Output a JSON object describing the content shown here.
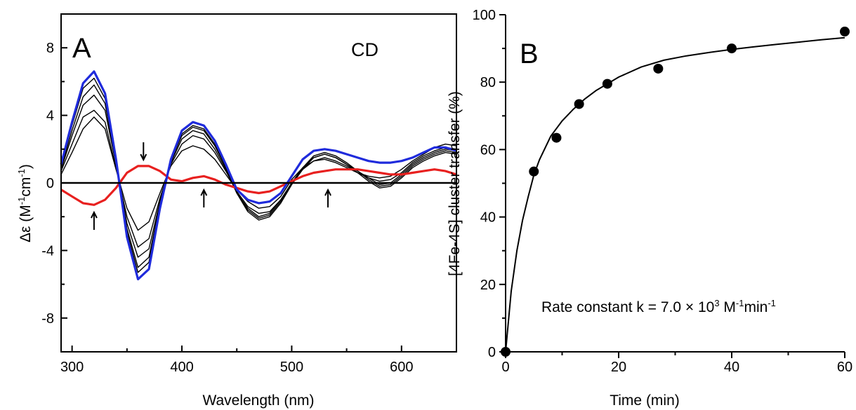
{
  "chart_data": [
    {
      "type": "line",
      "panel_label": "A",
      "annotation": "CD",
      "xlabel": "Wavelength (nm)",
      "ylabel_text": "Δε (M",
      "ylabel_sup1": "-1",
      "ylabel_mid": "cm",
      "ylabel_sup2": "-1",
      "ylabel_end": ")",
      "xlim": [
        290,
        650
      ],
      "ylim": [
        -10,
        10
      ],
      "xticks": [
        300,
        400,
        500,
        600
      ],
      "yticks": [
        -8,
        -4,
        0,
        4,
        8
      ],
      "grid": false,
      "colors": {
        "initial": "#e8201f",
        "intermediate": "#000000",
        "final": "#1f2bdc",
        "zero_line": "#000000"
      },
      "arrows": [
        {
          "x": 365,
          "direction": "down"
        },
        {
          "x": 320,
          "direction": "up"
        },
        {
          "x": 420,
          "direction": "up"
        },
        {
          "x": 533,
          "direction": "up"
        }
      ],
      "series": [
        {
          "role": "initial",
          "x": [
            290,
            300,
            310,
            320,
            330,
            340,
            350,
            360,
            370,
            380,
            390,
            400,
            410,
            420,
            430,
            440,
            450,
            460,
            470,
            480,
            490,
            500,
            510,
            520,
            530,
            540,
            550,
            560,
            570,
            580,
            590,
            600,
            610,
            620,
            630,
            640,
            650
          ],
          "y": [
            -0.4,
            -0.8,
            -1.2,
            -1.3,
            -1.0,
            -0.3,
            0.6,
            1.0,
            1.0,
            0.7,
            0.2,
            0.1,
            0.3,
            0.4,
            0.2,
            -0.1,
            -0.3,
            -0.5,
            -0.6,
            -0.5,
            -0.2,
            0.1,
            0.4,
            0.6,
            0.7,
            0.8,
            0.8,
            0.8,
            0.7,
            0.6,
            0.5,
            0.5,
            0.6,
            0.7,
            0.8,
            0.7,
            0.5
          ]
        },
        {
          "role": "intermediate",
          "x": [
            290,
            300,
            310,
            320,
            330,
            340,
            350,
            360,
            370,
            380,
            390,
            400,
            410,
            420,
            430,
            440,
            450,
            460,
            470,
            480,
            490,
            500,
            510,
            520,
            530,
            540,
            550,
            560,
            570,
            580,
            590,
            600,
            610,
            620,
            630,
            640,
            650
          ],
          "y": [
            0.5,
            1.8,
            3.2,
            3.9,
            3.2,
            0.8,
            -1.5,
            -2.8,
            -2.3,
            -0.6,
            1.0,
            1.9,
            2.2,
            2.0,
            1.4,
            0.5,
            -0.4,
            -1.1,
            -1.5,
            -1.4,
            -0.8,
            0.2,
            0.9,
            1.3,
            1.4,
            1.2,
            0.9,
            0.6,
            0.4,
            0.3,
            0.4,
            0.8,
            1.3,
            1.7,
            2.1,
            2.3,
            2.2
          ]
        },
        {
          "role": "intermediate",
          "x": [
            290,
            300,
            310,
            320,
            330,
            340,
            350,
            360,
            370,
            380,
            390,
            400,
            410,
            420,
            430,
            440,
            450,
            460,
            470,
            480,
            490,
            500,
            510,
            520,
            530,
            540,
            550,
            560,
            570,
            580,
            590,
            600,
            610,
            620,
            630,
            640,
            650
          ],
          "y": [
            0.7,
            2.3,
            3.9,
            4.3,
            3.6,
            0.9,
            -2.0,
            -3.8,
            -3.3,
            -0.9,
            1.1,
            2.3,
            2.8,
            2.6,
            1.8,
            0.7,
            -0.5,
            -1.4,
            -1.8,
            -1.7,
            -1.0,
            0.0,
            0.8,
            1.3,
            1.5,
            1.3,
            1.0,
            0.6,
            0.3,
            0.1,
            0.2,
            0.6,
            1.2,
            1.6,
            1.9,
            2.1,
            2.0
          ]
        },
        {
          "role": "intermediate",
          "x": [
            290,
            300,
            310,
            320,
            330,
            340,
            350,
            360,
            370,
            380,
            390,
            400,
            410,
            420,
            430,
            440,
            450,
            460,
            470,
            480,
            490,
            500,
            510,
            520,
            530,
            540,
            550,
            560,
            570,
            580,
            590,
            600,
            610,
            620,
            630,
            640,
            650
          ],
          "y": [
            0.8,
            2.8,
            4.6,
            5.2,
            4.3,
            1.1,
            -2.4,
            -4.4,
            -3.9,
            -1.1,
            1.2,
            2.6,
            3.1,
            2.9,
            2.0,
            0.8,
            -0.6,
            -1.5,
            -2.0,
            -1.8,
            -1.0,
            0.0,
            0.9,
            1.5,
            1.7,
            1.5,
            1.1,
            0.7,
            0.3,
            -0.1,
            0.0,
            0.5,
            1.1,
            1.5,
            1.8,
            2.0,
            1.9
          ]
        },
        {
          "role": "intermediate",
          "x": [
            290,
            300,
            310,
            320,
            330,
            340,
            350,
            360,
            370,
            380,
            390,
            400,
            410,
            420,
            430,
            440,
            450,
            460,
            470,
            480,
            490,
            500,
            510,
            520,
            530,
            540,
            550,
            560,
            570,
            580,
            590,
            600,
            610,
            620,
            630,
            640,
            650
          ],
          "y": [
            0.9,
            3.1,
            5.1,
            5.8,
            4.7,
            1.2,
            -2.7,
            -5.0,
            -4.4,
            -1.2,
            1.3,
            2.8,
            3.3,
            3.1,
            2.2,
            0.9,
            -0.6,
            -1.6,
            -2.1,
            -1.9,
            -1.1,
            0.0,
            0.9,
            1.6,
            1.8,
            1.6,
            1.2,
            0.7,
            0.2,
            -0.2,
            -0.1,
            0.4,
            1.0,
            1.4,
            1.7,
            1.9,
            1.8
          ]
        },
        {
          "role": "intermediate",
          "x": [
            290,
            300,
            310,
            320,
            330,
            340,
            350,
            360,
            370,
            380,
            390,
            400,
            410,
            420,
            430,
            440,
            450,
            460,
            470,
            480,
            490,
            500,
            510,
            520,
            530,
            540,
            550,
            560,
            570,
            580,
            590,
            600,
            610,
            620,
            630,
            640,
            650
          ],
          "y": [
            1.0,
            3.4,
            5.6,
            6.2,
            5.0,
            1.3,
            -2.9,
            -5.3,
            -4.7,
            -1.3,
            1.3,
            2.9,
            3.4,
            3.2,
            2.3,
            1.0,
            -0.6,
            -1.7,
            -2.2,
            -2.0,
            -1.2,
            -0.1,
            0.8,
            1.5,
            1.7,
            1.5,
            1.1,
            0.6,
            0.1,
            -0.3,
            -0.2,
            0.3,
            0.9,
            1.3,
            1.6,
            1.8,
            1.7
          ]
        },
        {
          "role": "final",
          "x": [
            290,
            300,
            310,
            320,
            330,
            340,
            350,
            360,
            370,
            380,
            390,
            400,
            410,
            420,
            430,
            440,
            450,
            460,
            470,
            480,
            490,
            500,
            510,
            520,
            530,
            540,
            550,
            560,
            570,
            580,
            590,
            600,
            610,
            620,
            630,
            640,
            650
          ],
          "y": [
            1.1,
            3.6,
            5.9,
            6.6,
            5.3,
            1.4,
            -3.2,
            -5.7,
            -5.1,
            -1.5,
            1.4,
            3.1,
            3.6,
            3.4,
            2.5,
            1.1,
            -0.4,
            -1.0,
            -1.2,
            -1.1,
            -0.6,
            0.4,
            1.4,
            1.9,
            2.0,
            1.9,
            1.7,
            1.5,
            1.3,
            1.2,
            1.2,
            1.3,
            1.5,
            1.8,
            2.1,
            2.1,
            1.9
          ]
        }
      ]
    },
    {
      "type": "scatter",
      "panel_label": "B",
      "xlabel": "Time (min)",
      "ylabel": "[4Fe-4S] cluster transfer (%)",
      "xlim": [
        0,
        60
      ],
      "ylim": [
        0,
        100
      ],
      "xticks": [
        0,
        20,
        40,
        60
      ],
      "yticks": [
        0,
        20,
        40,
        60,
        80,
        100
      ],
      "grid": false,
      "annotation_text": "Rate constant k = 7.0 × 10",
      "annotation_sup1": "3",
      "annotation_mid": " M",
      "annotation_sup2": "-1",
      "annotation_mid2": "min",
      "annotation_sup3": "-1",
      "points": {
        "x": [
          0,
          5,
          9,
          13,
          18,
          27,
          40,
          60
        ],
        "y": [
          0,
          53.5,
          63.5,
          73.5,
          79.5,
          84,
          90,
          95
        ]
      },
      "fit": {
        "x": [
          0,
          1,
          2,
          3,
          4,
          5,
          6,
          8,
          10,
          12,
          14,
          16,
          18,
          20,
          24,
          28,
          32,
          36,
          40,
          44,
          48,
          52,
          56,
          60
        ],
        "y": [
          0,
          18,
          30,
          39,
          46,
          52.5,
          57,
          64,
          68.5,
          72,
          75,
          77.5,
          79.5,
          81.5,
          84.5,
          86.5,
          87.8,
          88.8,
          89.7,
          90.5,
          91.2,
          91.9,
          92.6,
          93.2
        ]
      }
    }
  ]
}
